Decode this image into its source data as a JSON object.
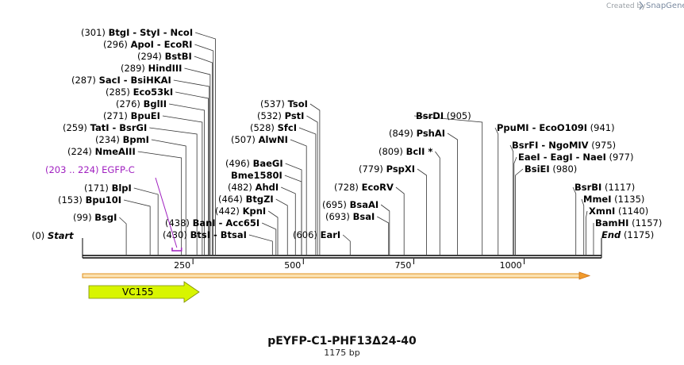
{
  "watermark": {
    "created_by": "Created by",
    "brand": "SnapGene"
  },
  "title": "pEYFP-C1-PHF13Δ24-40",
  "subtitle": "1175 bp",
  "sequence_length": 1175,
  "axis_ticks": [
    250,
    500,
    750,
    1000
  ],
  "annotations": [
    {
      "pos": 0,
      "label": "(0)",
      "name": "Start",
      "style": "terminus"
    },
    {
      "pos": 99,
      "label": "(99)",
      "name": "BsgI"
    },
    {
      "pos": 153,
      "label": "(153)",
      "name": "Bpu10I"
    },
    {
      "pos": 171,
      "label": "(171)",
      "name": "BlpI"
    },
    {
      "pos": 203,
      "label": "(203 .. 224)",
      "name": "EGFP-C",
      "style": "feature",
      "start": 203,
      "end": 224
    },
    {
      "pos": 224,
      "label": "(224)",
      "name": "NmeAIII"
    },
    {
      "pos": 234,
      "label": "(234)",
      "name": "BpmI"
    },
    {
      "pos": 259,
      "label": "(259)",
      "name": "TatI - BsrGI"
    },
    {
      "pos": 271,
      "label": "(271)",
      "name": "BpuEI"
    },
    {
      "pos": 276,
      "label": "(276)",
      "name": "BglII"
    },
    {
      "pos": 285,
      "label": "(285)",
      "name": "Eco53kI"
    },
    {
      "pos": 287,
      "label": "(287)",
      "name": "SacI - BsiHKAI"
    },
    {
      "pos": 289,
      "label": "(289)",
      "name": "HindIII"
    },
    {
      "pos": 294,
      "label": "(294)",
      "name": "BstBI"
    },
    {
      "pos": 296,
      "label": "(296)",
      "name": "ApoI - EcoRI"
    },
    {
      "pos": 301,
      "label": "(301)",
      "name": "BtgI - StyI - NcoI"
    },
    {
      "pos": 430,
      "label": "(430)",
      "name": "BtsI - BtsaI"
    },
    {
      "pos": 438,
      "label": "(438)",
      "name": "BanI - Acc65I"
    },
    {
      "pos": 442,
      "label": "(442)",
      "name": "KpnI"
    },
    {
      "pos": 464,
      "label": "(464)",
      "name": "BtgZI"
    },
    {
      "pos": 482,
      "label": "(482)",
      "name": "AhdI"
    },
    {
      "pos": 496,
      "label": "(496)",
      "name": "BaeGI"
    },
    {
      "pos": 496,
      "label": "",
      "name": "Bme1580I"
    },
    {
      "pos": 507,
      "label": "(507)",
      "name": "AlwNI"
    },
    {
      "pos": 528,
      "label": "(528)",
      "name": "SfcI"
    },
    {
      "pos": 532,
      "label": "(532)",
      "name": "PstI"
    },
    {
      "pos": 537,
      "label": "(537)",
      "name": "TsoI"
    },
    {
      "pos": 606,
      "label": "(606)",
      "name": "EarI"
    },
    {
      "pos": 693,
      "label": "(693)",
      "name": "BsaI"
    },
    {
      "pos": 695,
      "label": "(695)",
      "name": "BsaAI"
    },
    {
      "pos": 728,
      "label": "(728)",
      "name": "EcoRV"
    },
    {
      "pos": 779,
      "label": "(779)",
      "name": "PspXI"
    },
    {
      "pos": 809,
      "label": "(809)",
      "name": "BclI *"
    },
    {
      "pos": 849,
      "label": "(849)",
      "name": "PshAI"
    },
    {
      "pos": 905,
      "label": "(905)",
      "name": "BsrDI"
    },
    {
      "pos": 941,
      "label": "(941)",
      "name": "PpuMI - EcoO109I"
    },
    {
      "pos": 975,
      "label": "(975)",
      "name": "BsrFI - NgoMIV"
    },
    {
      "pos": 977,
      "label": "(977)",
      "name": "EaeI - EagI - NaeI"
    },
    {
      "pos": 980,
      "label": "(980)",
      "name": "BsiEI"
    },
    {
      "pos": 1117,
      "label": "(1117)",
      "name": "BsrBI"
    },
    {
      "pos": 1135,
      "label": "(1135)",
      "name": "MmeI"
    },
    {
      "pos": 1140,
      "label": "(1140)",
      "name": "XmnI"
    },
    {
      "pos": 1157,
      "label": "(1157)",
      "name": "BamHI"
    },
    {
      "pos": 1175,
      "label": "(1175)",
      "name": "End",
      "style": "terminus"
    }
  ],
  "feature_arrow": {
    "label": "VC155",
    "color": "#d8f500"
  },
  "orf_color": "#f29b2c"
}
